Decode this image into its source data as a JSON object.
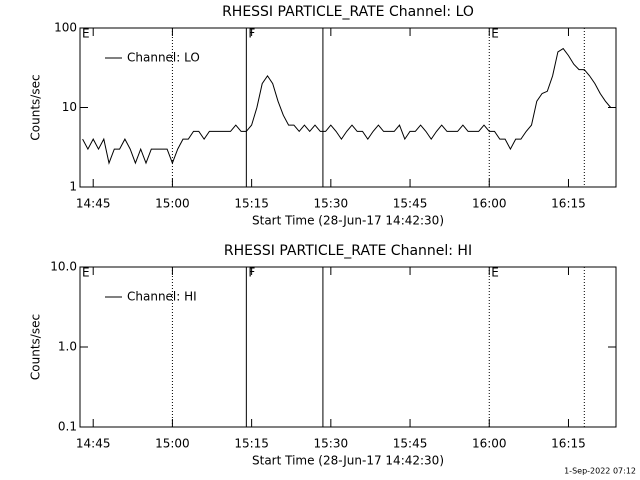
{
  "chart_data": [
    {
      "type": "line",
      "title": "RHESSI PARTICLE_RATE Channel: LO",
      "xlabel": "Start Time (28-Jun-17 14:42:30)",
      "ylabel": "Counts/sec",
      "log_y": true,
      "ylim": [
        1,
        100
      ],
      "yticks": [
        1,
        10,
        100
      ],
      "xlim": [
        "14:42:30",
        "16:24"
      ],
      "xticks": [
        "14:45",
        "15:00",
        "15:15",
        "15:30",
        "15:45",
        "16:00",
        "16:15"
      ],
      "legend": "upper left",
      "annotations": [
        {
          "time": "14:42:30",
          "label": "E"
        },
        {
          "time": "15:00",
          "style": "dotted"
        },
        {
          "time": "15:14",
          "style": "solid",
          "label": "F"
        },
        {
          "time": "15:28:30",
          "style": "solid"
        },
        {
          "time": "16:00",
          "style": "dotted",
          "label": "E"
        },
        {
          "time": "16:18",
          "style": "dotted"
        }
      ],
      "x": [
        "14:43",
        "14:44",
        "14:45",
        "14:46",
        "14:47",
        "14:48",
        "14:49",
        "14:50",
        "14:51",
        "14:52",
        "14:53",
        "14:54",
        "14:55",
        "14:56",
        "14:57",
        "14:58",
        "14:59",
        "15:00",
        "15:01",
        "15:02",
        "15:03",
        "15:04",
        "15:05",
        "15:06",
        "15:07",
        "15:08",
        "15:09",
        "15:10",
        "15:11",
        "15:12",
        "15:13",
        "15:14",
        "15:15",
        "15:16",
        "15:17",
        "15:18",
        "15:19",
        "15:20",
        "15:21",
        "15:22",
        "15:23",
        "15:24",
        "15:25",
        "15:26",
        "15:27",
        "15:28",
        "15:29",
        "15:30",
        "15:31",
        "15:32",
        "15:33",
        "15:34",
        "15:35",
        "15:36",
        "15:37",
        "15:38",
        "15:39",
        "15:40",
        "15:41",
        "15:42",
        "15:43",
        "15:44",
        "15:45",
        "15:46",
        "15:47",
        "15:48",
        "15:49",
        "15:50",
        "15:51",
        "15:52",
        "15:53",
        "15:54",
        "15:55",
        "15:56",
        "15:57",
        "15:58",
        "15:59",
        "16:00",
        "16:01",
        "16:02",
        "16:03",
        "16:04",
        "16:05",
        "16:06",
        "16:07",
        "16:08",
        "16:09",
        "16:10",
        "16:11",
        "16:12",
        "16:13",
        "16:14",
        "16:15",
        "16:16",
        "16:17",
        "16:18",
        "16:19",
        "16:20",
        "16:21",
        "16:22",
        "16:23"
      ],
      "series": [
        {
          "name": "Channel: LO",
          "color": "#000000",
          "values": [
            4,
            3,
            4,
            3,
            4,
            2,
            3,
            3,
            4,
            3,
            2,
            3,
            2,
            3,
            3,
            3,
            3,
            2,
            3,
            4,
            4,
            5,
            5,
            4,
            5,
            5,
            5,
            5,
            5,
            6,
            5,
            5,
            6,
            10,
            20,
            25,
            20,
            12,
            8,
            6,
            6,
            5,
            6,
            5,
            6,
            5,
            5,
            6,
            5,
            4,
            5,
            6,
            5,
            5,
            4,
            5,
            6,
            5,
            5,
            5,
            6,
            4,
            5,
            5,
            6,
            5,
            4,
            5,
            6,
            5,
            5,
            5,
            6,
            5,
            5,
            5,
            6,
            5,
            5,
            4,
            4,
            3,
            4,
            4,
            5,
            6,
            12,
            15,
            16,
            25,
            50,
            55,
            45,
            35,
            30,
            30,
            25,
            20,
            15,
            12,
            10
          ]
        }
      ]
    },
    {
      "type": "line",
      "title": "RHESSI PARTICLE_RATE Channel: HI",
      "xlabel": "Start Time (28-Jun-17 14:42:30)",
      "ylabel": "Counts/sec",
      "log_y": true,
      "ylim": [
        0.1,
        10
      ],
      "yticks": [
        0.1,
        {
          "value": 1,
          "label": "1.0"
        },
        {
          "value": 10,
          "label": "10.0"
        }
      ],
      "xlim": [
        "14:42:30",
        "16:24"
      ],
      "xticks": [
        "14:45",
        "15:00",
        "15:15",
        "15:30",
        "15:45",
        "16:00",
        "16:15"
      ],
      "legend": "upper left",
      "annotations": [
        {
          "time": "14:42:30",
          "label": "E"
        },
        {
          "time": "15:00",
          "style": "dotted"
        },
        {
          "time": "15:14",
          "style": "solid",
          "label": "F"
        },
        {
          "time": "15:28:30",
          "style": "solid"
        },
        {
          "time": "16:00",
          "style": "dotted",
          "label": "E"
        },
        {
          "time": "16:18",
          "style": "dotted"
        }
      ],
      "x": [],
      "series": [
        {
          "name": "Channel: HI",
          "color": "#000000",
          "values": []
        }
      ]
    }
  ],
  "footer": "1-Sep-2022 07:12"
}
